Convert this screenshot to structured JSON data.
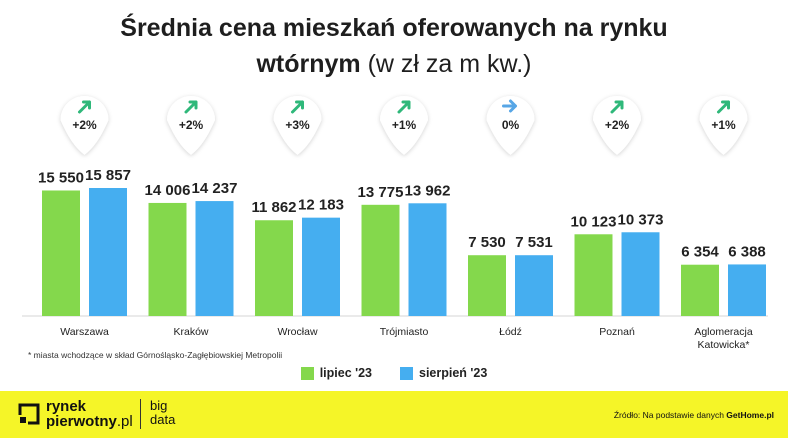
{
  "title": {
    "line1": "Średnia cena mieszkań oferowanych na rynku",
    "line2_bold": "wtórnym",
    "line2_light": "(w zł za m kw.)"
  },
  "chart_data": {
    "type": "bar",
    "title": "Średnia cena mieszkań oferowanych na rynku wtórnym (w zł za m kw.)",
    "categories": [
      "Warszawa",
      "Kraków",
      "Wrocław",
      "Trójmiasto",
      "Łódź",
      "Poznań",
      "Aglomeracja Katowicka*"
    ],
    "category_lines": [
      [
        "Warszawa"
      ],
      [
        "Kraków"
      ],
      [
        "Wrocław"
      ],
      [
        "Trójmiasto"
      ],
      [
        "Łódź"
      ],
      [
        "Poznań"
      ],
      [
        "Aglomeracja",
        "Katowicka*"
      ]
    ],
    "series": [
      {
        "name": "lipiec '23",
        "color": "#84d84c",
        "values": [
          15550,
          14006,
          11862,
          13775,
          7530,
          10123,
          6354
        ],
        "labels": [
          "15 550",
          "14 006",
          "11 862",
          "13 775",
          "7 530",
          "10 123",
          "6 354"
        ]
      },
      {
        "name": "sierpień '23",
        "color": "#45aef0",
        "values": [
          15857,
          14237,
          12183,
          13962,
          7531,
          10373,
          6388
        ],
        "labels": [
          "15 857",
          "14 237",
          "12 183",
          "13 962",
          "7 531",
          "10 373",
          "6 388"
        ]
      }
    ],
    "changes": [
      "+2%",
      "+2%",
      "+3%",
      "+1%",
      "0%",
      "+2%",
      "+1%"
    ],
    "change_icons": [
      "arrow-up-right-icon",
      "arrow-up-right-icon",
      "arrow-up-right-icon",
      "arrow-up-right-icon",
      "arrow-right-icon",
      "arrow-up-right-icon",
      "arrow-up-right-icon"
    ],
    "arrow_colors": {
      "up": "#2fb87a",
      "flat": "#57a6e6"
    },
    "grid": false,
    "legend_position": "bottom"
  },
  "footnote": "* miasta wchodzące w skład Górnośląsko-Zagłębiowskiej Metropolii",
  "legend": {
    "july": "lipiec '23",
    "august": "sierpień '23"
  },
  "footer": {
    "brand_line1": "rynek",
    "brand_line2": "pierwotny",
    "brand_tld": ".pl",
    "bigdata_line1": "big",
    "bigdata_line2": "data",
    "source_prefix": "Źródło: Na podstawie danych",
    "source_name": "GetHome.pl",
    "background": "#f5f528"
  }
}
